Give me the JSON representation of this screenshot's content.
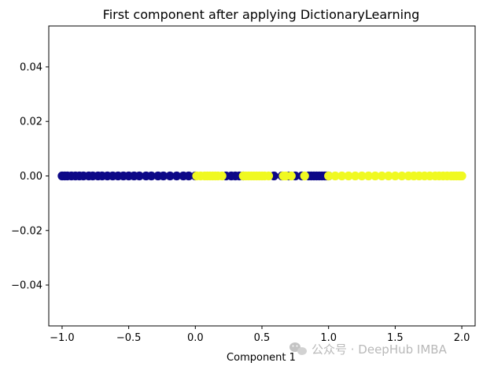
{
  "chart_data": {
    "type": "scatter",
    "title": "First component after applying DictionaryLearning",
    "xlabel": "Component 1",
    "ylabel": "",
    "xlim": [
      -1.1,
      2.1
    ],
    "ylim": [
      -0.055,
      0.055
    ],
    "xticks": [
      -1.0,
      -0.5,
      0.0,
      0.5,
      1.0,
      1.5,
      2.0
    ],
    "xtick_labels": [
      "−1.0",
      "−0.5",
      "0.0",
      "0.5",
      "1.0",
      "1.5",
      "2.0"
    ],
    "yticks": [
      -0.04,
      -0.02,
      0.0,
      0.02,
      0.04
    ],
    "ytick_labels": [
      "−0.04",
      "−0.02",
      "0.00",
      "0.02",
      "0.04"
    ],
    "grid": false,
    "series": [
      {
        "color": "#0d0887",
        "x": [
          -1.0,
          -0.98,
          -0.96,
          -0.93,
          -0.9,
          -0.87,
          -0.84,
          -0.8,
          -0.77,
          -0.73,
          -0.7,
          -0.66,
          -0.62,
          -0.58,
          -0.54,
          -0.5,
          -0.46,
          -0.42,
          -0.37,
          -0.33,
          -0.28,
          -0.24,
          -0.19,
          -0.14,
          -0.09,
          -0.05,
          0.0,
          0.23,
          0.27,
          0.3,
          0.33,
          0.36,
          0.59,
          0.65,
          0.7,
          0.75,
          0.8,
          0.85,
          0.87,
          0.89,
          0.91,
          0.93,
          0.95,
          0.97,
          0.98,
          0.99,
          1.0
        ],
        "y": [
          0,
          0,
          0,
          0,
          0,
          0,
          0,
          0,
          0,
          0,
          0,
          0,
          0,
          0,
          0,
          0,
          0,
          0,
          0,
          0,
          0,
          0,
          0,
          0,
          0,
          0,
          0,
          0,
          0,
          0,
          0,
          0,
          0,
          0,
          0,
          0,
          0,
          0,
          0,
          0,
          0,
          0,
          0,
          0,
          0,
          0,
          0
        ]
      },
      {
        "color": "#f0f921",
        "x": [
          0.01,
          0.04,
          0.07,
          0.09,
          0.11,
          0.13,
          0.15,
          0.17,
          0.2,
          0.36,
          0.38,
          0.4,
          0.42,
          0.44,
          0.46,
          0.48,
          0.5,
          0.52,
          0.55,
          0.66,
          0.68,
          0.72,
          0.82,
          1.0,
          1.05,
          1.1,
          1.15,
          1.2,
          1.25,
          1.3,
          1.35,
          1.4,
          1.45,
          1.5,
          1.55,
          1.6,
          1.64,
          1.68,
          1.72,
          1.76,
          1.8,
          1.83,
          1.86,
          1.89,
          1.92,
          1.94,
          1.96,
          1.98,
          1.99,
          2.0
        ],
        "y": [
          0,
          0,
          0,
          0,
          0,
          0,
          0,
          0,
          0,
          0,
          0,
          0,
          0,
          0,
          0,
          0,
          0,
          0,
          0,
          0,
          0,
          0,
          0,
          0,
          0,
          0,
          0,
          0,
          0,
          0,
          0,
          0,
          0,
          0,
          0,
          0,
          0,
          0,
          0,
          0,
          0,
          0,
          0,
          0,
          0,
          0,
          0,
          0,
          0,
          0
        ]
      }
    ]
  },
  "watermark": {
    "text": "公众号 · DeepHub IMBA",
    "icon": "wechat-icon"
  }
}
